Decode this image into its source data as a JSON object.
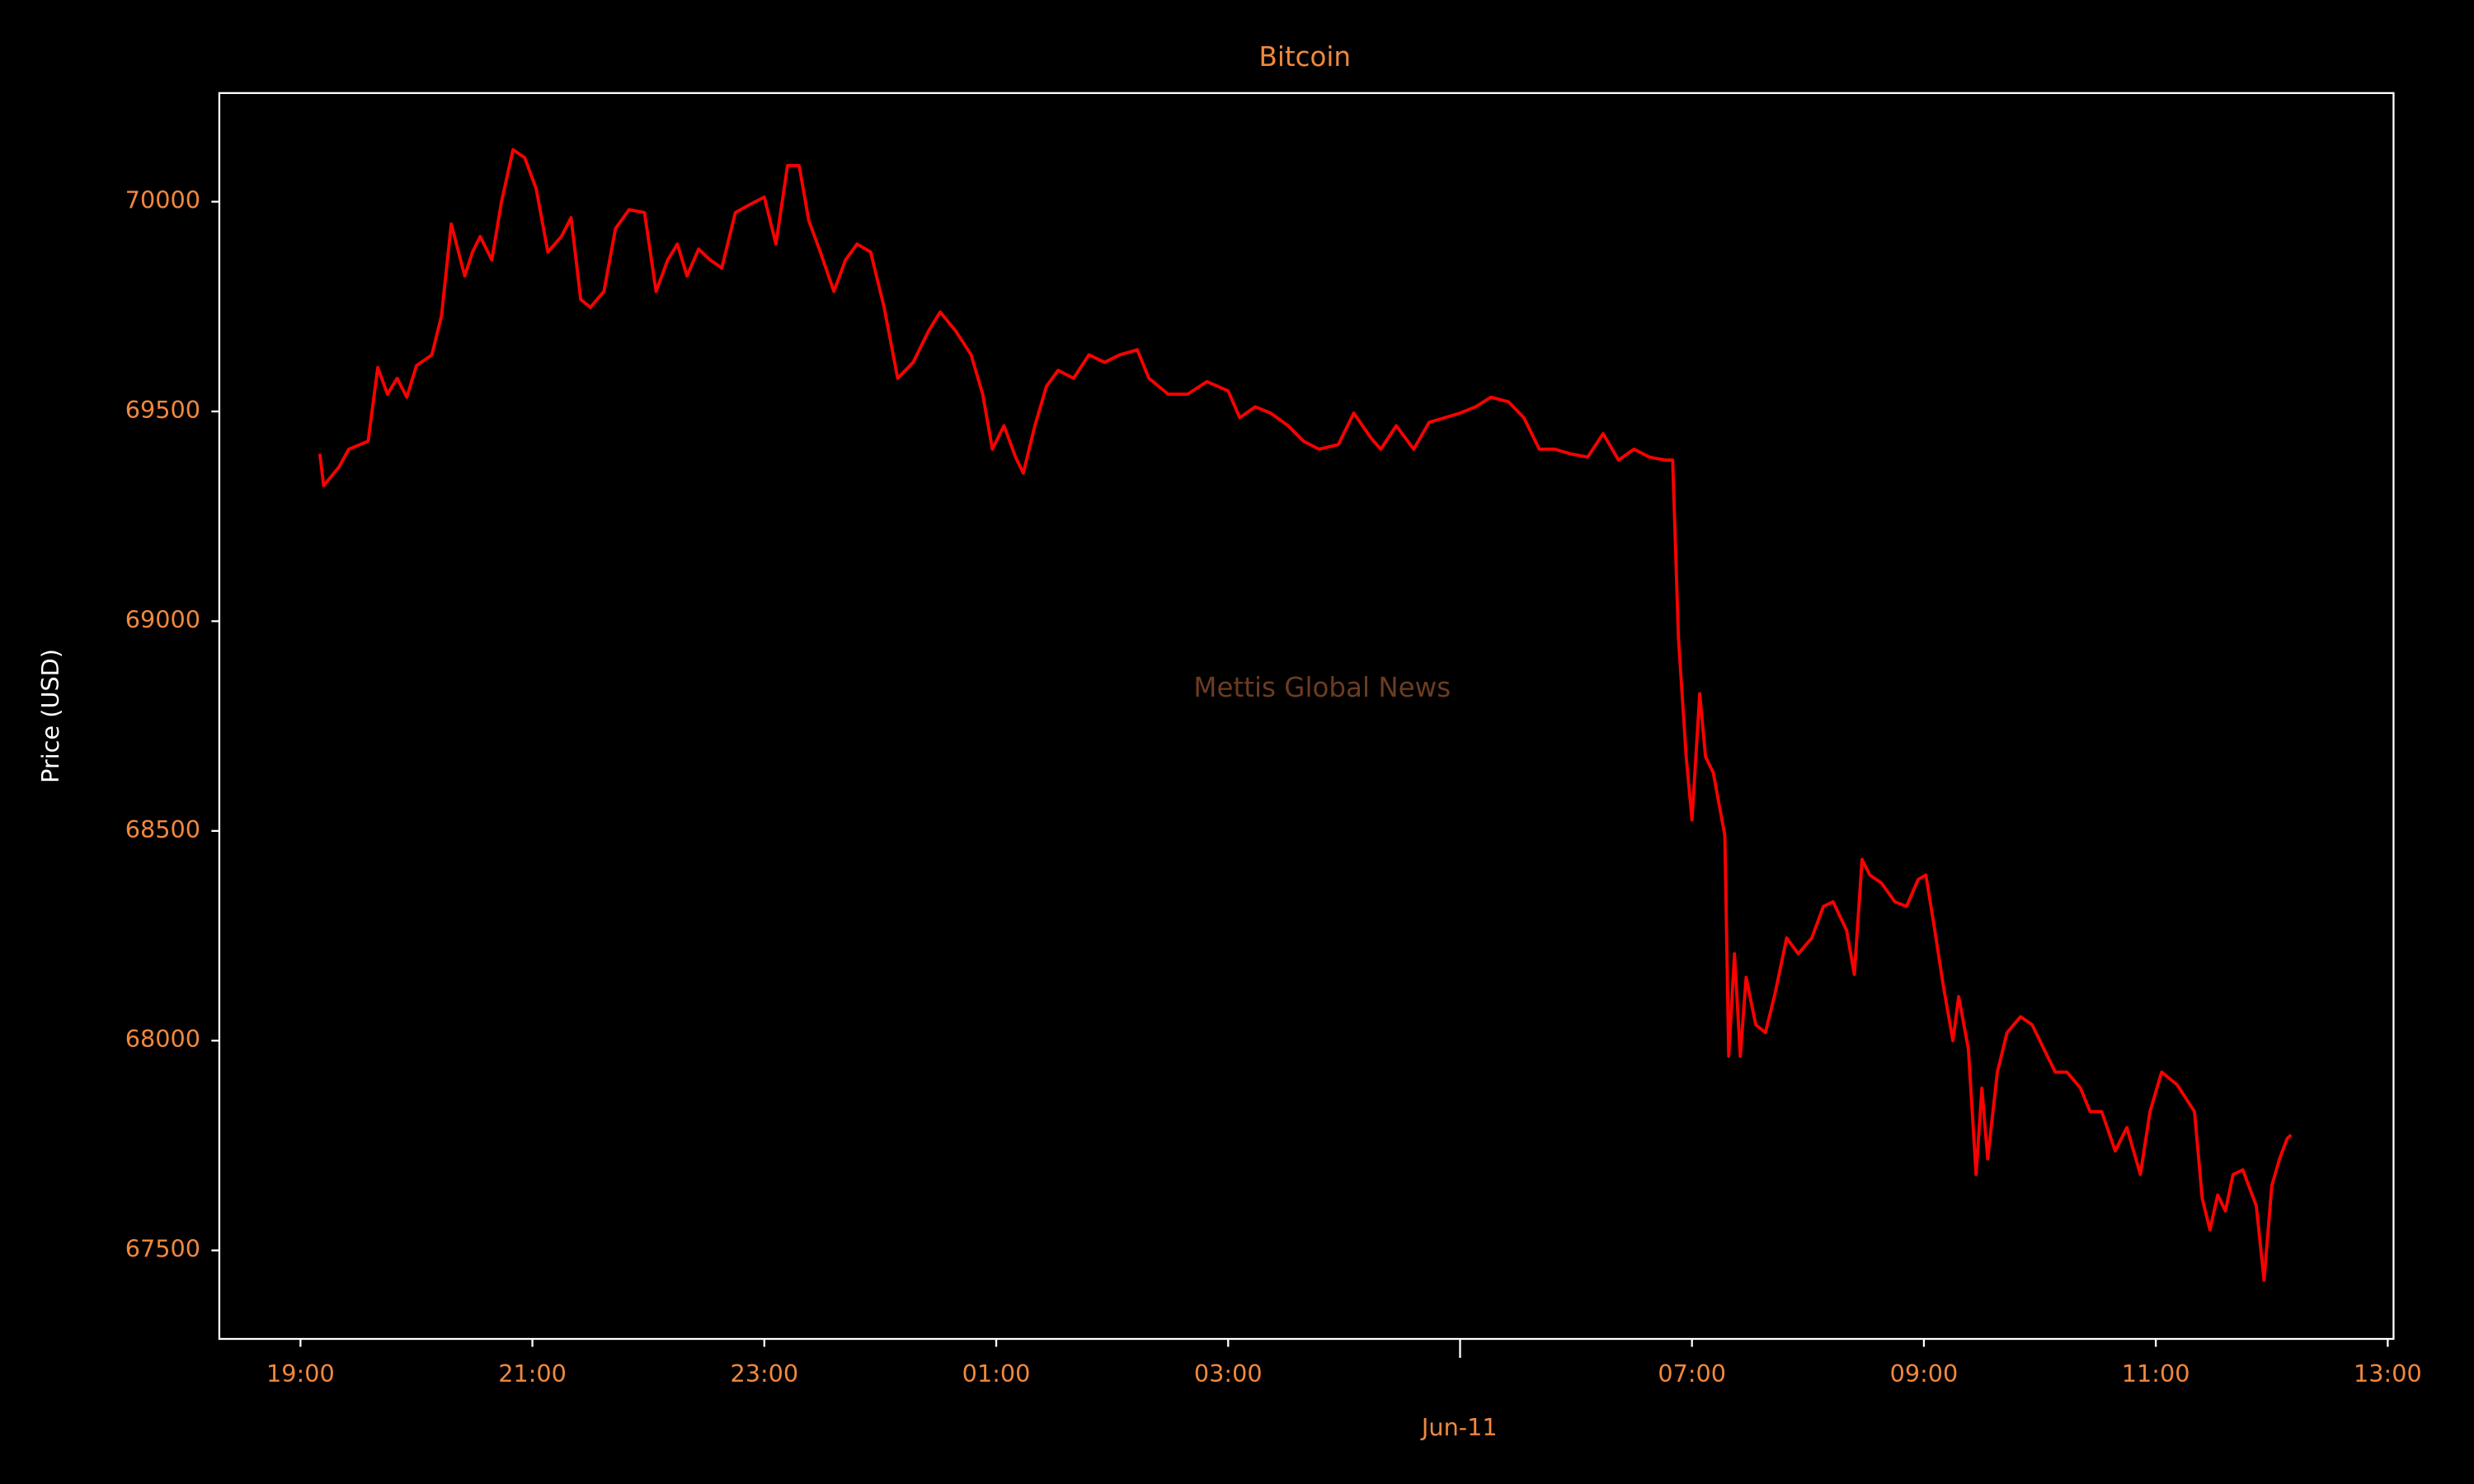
{
  "chart_data": {
    "type": "line",
    "title": "Bitcoin",
    "ylabel": "Price (USD)",
    "xlabel": "Jun-11",
    "watermark": "Mettis Global News",
    "x": [
      "19:10",
      "19:12",
      "19:20",
      "19:25",
      "19:35",
      "19:40",
      "19:45",
      "19:50",
      "19:55",
      "20:00",
      "20:08",
      "20:13",
      "20:18",
      "20:25",
      "20:29",
      "20:33",
      "20:39",
      "20:44",
      "20:50",
      "20:56",
      "21:02",
      "21:08",
      "21:15",
      "21:20",
      "21:25",
      "21:30",
      "21:37",
      "21:43",
      "21:50",
      "21:58",
      "22:04",
      "22:10",
      "22:15",
      "22:20",
      "22:26",
      "22:32",
      "22:38",
      "22:45",
      "22:52",
      "23:00",
      "23:06",
      "23:12",
      "23:18",
      "23:23",
      "23:29",
      "23:36",
      "23:42",
      "23:48",
      "23:55",
      "00:02",
      "00:09",
      "00:17",
      "00:25",
      "00:31",
      "00:39",
      "00:47",
      "00:53",
      "00:58",
      "01:04",
      "01:10",
      "01:14",
      "01:20",
      "01:26",
      "01:32",
      "01:40",
      "01:48",
      "01:56",
      "02:04",
      "02:13",
      "02:19",
      "02:29",
      "02:39",
      "02:49",
      "03:00",
      "03:06",
      "03:14",
      "03:22",
      "03:31",
      "03:39",
      "03:47",
      "03:57",
      "04:05",
      "04:14",
      "04:19",
      "04:27",
      "04:36",
      "04:44",
      "04:52",
      "05:00",
      "05:08",
      "05:16",
      "05:25",
      "05:33",
      "05:41",
      "05:49",
      "05:57",
      "06:06",
      "06:14",
      "06:22",
      "06:30",
      "06:38",
      "06:46",
      "06:50",
      "06:53",
      "06:57",
      "07:00",
      "07:04",
      "07:07",
      "07:11",
      "07:17",
      "07:19",
      "07:22",
      "07:25",
      "07:28",
      "07:33",
      "07:38",
      "07:43",
      "07:49",
      "07:55",
      "08:02",
      "08:08",
      "08:13",
      "08:20",
      "08:24",
      "08:28",
      "08:32",
      "08:38",
      "08:45",
      "08:51",
      "08:57",
      "09:01",
      "09:05",
      "09:10",
      "09:15",
      "09:18",
      "09:23",
      "09:27",
      "09:30",
      "09:33",
      "09:38",
      "09:43",
      "09:50",
      "09:56",
      "10:02",
      "10:08",
      "10:14",
      "10:21",
      "10:26",
      "10:32",
      "10:39",
      "10:45",
      "10:52",
      "10:57",
      "11:03",
      "11:11",
      "11:20",
      "11:24",
      "11:28",
      "11:32",
      "11:36",
      "11:40",
      "11:45",
      "11:52",
      "11:56",
      "12:00",
      "12:04",
      "12:08",
      "12:10"
    ],
    "series": [
      {
        "name": "Bitcoin",
        "color": "#ff0000",
        "values": [
          69399,
          69323,
          69368,
          69410,
          69429,
          69605,
          69541,
          69579,
          69534,
          69609,
          69635,
          69729,
          69947,
          69823,
          69880,
          69917,
          69861,
          70000,
          70124,
          70105,
          70030,
          69880,
          69917,
          69962,
          69767,
          69748,
          69786,
          69936,
          69981,
          69974,
          69786,
          69861,
          69899,
          69823,
          69887,
          69861,
          69842,
          69974,
          69992,
          70011,
          69899,
          70086,
          70086,
          69955,
          69880,
          69786,
          69861,
          69899,
          69880,
          69748,
          69579,
          69617,
          69692,
          69737,
          69692,
          69635,
          69541,
          69410,
          69466,
          69391,
          69353,
          69466,
          69560,
          69598,
          69579,
          69635,
          69617,
          69635,
          69647,
          69579,
          69541,
          69541,
          69571,
          69549,
          69485,
          69511,
          69496,
          69466,
          69429,
          69410,
          69421,
          69496,
          69436,
          69410,
          69466,
          69410,
          69474,
          69485,
          69496,
          69511,
          69534,
          69523,
          69485,
          69410,
          69410,
          69399,
          69391,
          69447,
          69384,
          69410,
          69391,
          69384,
          69384,
          68959,
          68677,
          68526,
          68827,
          68677,
          68639,
          68489,
          67963,
          68207,
          67963,
          68151,
          68038,
          68019,
          68113,
          68245,
          68207,
          68245,
          68320,
          68331,
          68263,
          68158,
          68432,
          68395,
          68376,
          68331,
          68320,
          68384,
          68395,
          68282,
          68132,
          68000,
          68105,
          67981,
          67681,
          67887,
          67718,
          67925,
          68019,
          68057,
          68038,
          67981,
          67925,
          67925,
          67887,
          67831,
          67831,
          67737,
          67793,
          67681,
          67831,
          67925,
          67895,
          67831,
          67624,
          67549,
          67632,
          67594,
          67681,
          67692,
          67606,
          67429,
          67654,
          67718,
          67767,
          67775
        ]
      }
    ],
    "xlim": [
      "18:18",
      "13:03"
    ],
    "xticks": [
      "19:00",
      "21:00",
      "23:00",
      "01:00",
      "03:00",
      {
        "value": "05:00",
        "label": null
      },
      "07:00",
      "09:00",
      "11:00",
      "13:00"
    ],
    "ylim": [
      67289,
      70259
    ],
    "yticks": [
      67500,
      68000,
      68500,
      69000,
      69500,
      70000
    ]
  }
}
